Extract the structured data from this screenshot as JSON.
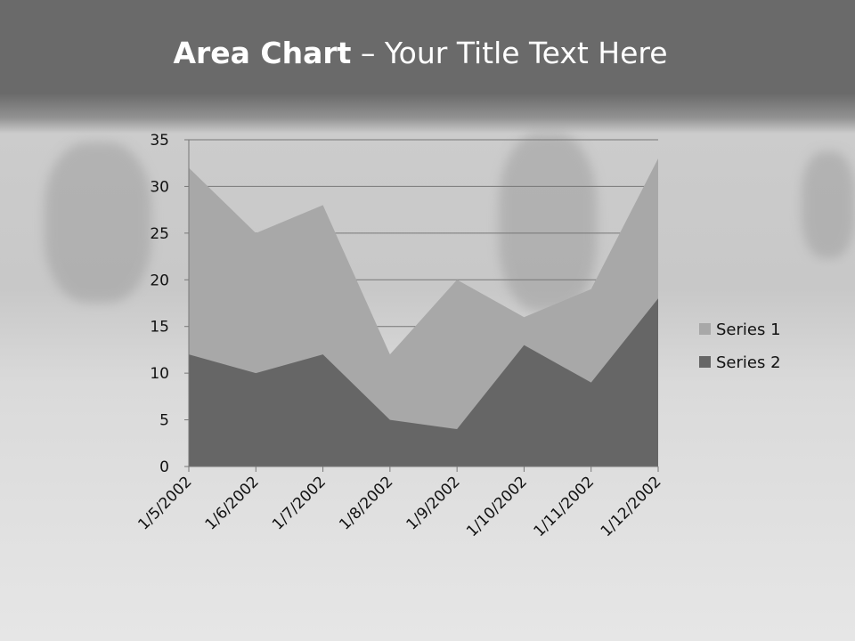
{
  "title": {
    "bold": "Area Chart",
    "rest": " – Your Title Text Here"
  },
  "chart_data": {
    "type": "area",
    "title": "",
    "categories": [
      "1/5/2002",
      "1/6/2002",
      "1/7/2002",
      "1/8/2002",
      "1/9/2002",
      "1/10/2002",
      "1/11/2002",
      "1/12/2002"
    ],
    "series": [
      {
        "name": "Series 1",
        "values": [
          32,
          25,
          28,
          12,
          20,
          16,
          19,
          33
        ],
        "color": "#a8a8a8"
      },
      {
        "name": "Series 2",
        "values": [
          12,
          10,
          12,
          5,
          4,
          13,
          9,
          18
        ],
        "color": "#666666"
      }
    ],
    "ylim": [
      0,
      35
    ],
    "yticks": [
      0,
      5,
      10,
      15,
      20,
      25,
      30,
      35
    ],
    "grid": true,
    "legend": "right"
  }
}
